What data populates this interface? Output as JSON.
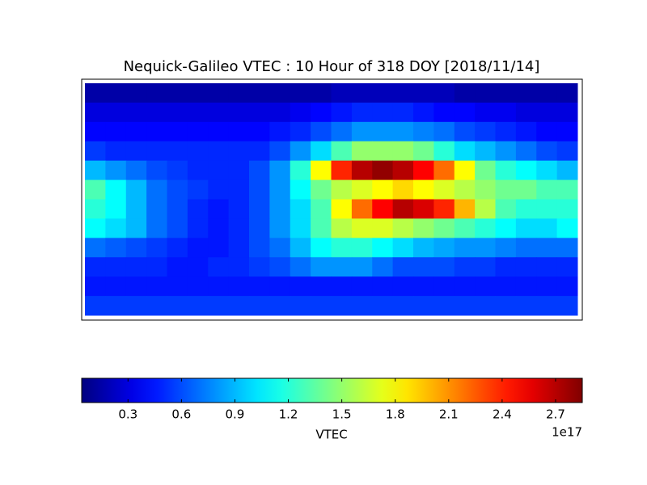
{
  "chart_data": {
    "type": "heatmap",
    "title": "Nequick-Galileo VTEC : 10 Hour of 318 DOY [2018/11/14]",
    "colormap": "jet",
    "z": [
      [
        0.15,
        0.15,
        0.15,
        0.15,
        0.15,
        0.15,
        0.15,
        0.15,
        0.15,
        0.15,
        0.15,
        0.15,
        0.2,
        0.2,
        0.2,
        0.2,
        0.2,
        0.2,
        0.15,
        0.15,
        0.15,
        0.15,
        0.15,
        0.15
      ],
      [
        0.3,
        0.3,
        0.3,
        0.3,
        0.3,
        0.3,
        0.3,
        0.3,
        0.3,
        0.3,
        0.35,
        0.4,
        0.45,
        0.5,
        0.5,
        0.5,
        0.45,
        0.4,
        0.4,
        0.35,
        0.35,
        0.3,
        0.3,
        0.3
      ],
      [
        0.4,
        0.4,
        0.4,
        0.4,
        0.4,
        0.4,
        0.4,
        0.4,
        0.4,
        0.45,
        0.5,
        0.6,
        0.7,
        0.8,
        0.8,
        0.8,
        0.75,
        0.7,
        0.6,
        0.55,
        0.5,
        0.45,
        0.4,
        0.4
      ],
      [
        0.55,
        0.5,
        0.5,
        0.5,
        0.5,
        0.5,
        0.5,
        0.5,
        0.5,
        0.6,
        0.8,
        1.0,
        1.3,
        1.5,
        1.5,
        1.5,
        1.4,
        1.2,
        1.0,
        0.9,
        0.8,
        0.7,
        0.6,
        0.55
      ],
      [
        0.9,
        0.8,
        0.7,
        0.6,
        0.55,
        0.5,
        0.5,
        0.5,
        0.6,
        0.8,
        1.2,
        1.8,
        2.4,
        2.7,
        2.8,
        2.7,
        2.5,
        2.2,
        1.8,
        1.4,
        1.2,
        1.1,
        1.0,
        0.9
      ],
      [
        1.3,
        1.1,
        0.9,
        0.7,
        0.6,
        0.55,
        0.5,
        0.5,
        0.6,
        0.8,
        1.1,
        1.4,
        1.6,
        1.7,
        1.8,
        1.9,
        1.8,
        1.7,
        1.6,
        1.5,
        1.4,
        1.4,
        1.3,
        1.3
      ],
      [
        1.2,
        1.1,
        0.9,
        0.7,
        0.6,
        0.5,
        0.45,
        0.5,
        0.6,
        0.8,
        1.0,
        1.3,
        1.8,
        2.2,
        2.5,
        2.7,
        2.6,
        2.4,
        2.0,
        1.6,
        1.3,
        1.2,
        1.2,
        1.2
      ],
      [
        1.1,
        1.0,
        0.9,
        0.7,
        0.6,
        0.5,
        0.45,
        0.5,
        0.6,
        0.8,
        1.0,
        1.3,
        1.6,
        1.7,
        1.7,
        1.6,
        1.5,
        1.4,
        1.3,
        1.2,
        1.1,
        1.0,
        1.0,
        1.1
      ],
      [
        0.7,
        0.65,
        0.6,
        0.55,
        0.5,
        0.45,
        0.45,
        0.5,
        0.6,
        0.7,
        0.9,
        1.1,
        1.2,
        1.2,
        1.1,
        1.0,
        0.9,
        0.85,
        0.8,
        0.8,
        0.75,
        0.7,
        0.7,
        0.7
      ],
      [
        0.5,
        0.5,
        0.5,
        0.5,
        0.45,
        0.45,
        0.5,
        0.5,
        0.55,
        0.6,
        0.7,
        0.8,
        0.8,
        0.8,
        0.7,
        0.6,
        0.6,
        0.6,
        0.55,
        0.55,
        0.5,
        0.5,
        0.5,
        0.5
      ],
      [
        0.45,
        0.45,
        0.45,
        0.45,
        0.45,
        0.45,
        0.45,
        0.45,
        0.45,
        0.45,
        0.45,
        0.45,
        0.45,
        0.45,
        0.45,
        0.45,
        0.45,
        0.45,
        0.45,
        0.45,
        0.45,
        0.45,
        0.45,
        0.45
      ],
      [
        0.55,
        0.55,
        0.55,
        0.55,
        0.55,
        0.55,
        0.55,
        0.55,
        0.55,
        0.55,
        0.55,
        0.55,
        0.55,
        0.55,
        0.55,
        0.55,
        0.55,
        0.55,
        0.55,
        0.55,
        0.55,
        0.55,
        0.55,
        0.55
      ]
    ],
    "clim": [
      0.04,
      2.85
    ],
    "cticks": [
      0.3,
      0.6,
      0.9,
      1.2,
      1.5,
      1.8,
      2.1,
      2.4,
      2.7
    ],
    "clabel": "VTEC",
    "offset_label": "1e17"
  }
}
